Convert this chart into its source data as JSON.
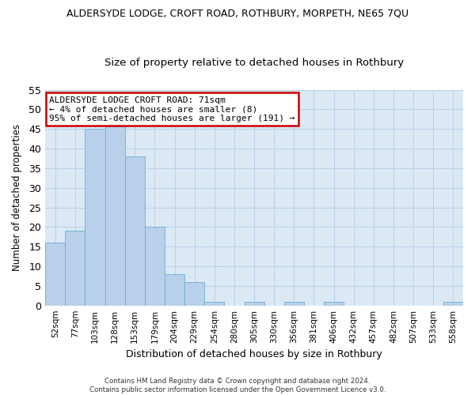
{
  "title": "ALDERSYDE LODGE, CROFT ROAD, ROTHBURY, MORPETH, NE65 7QU",
  "subtitle": "Size of property relative to detached houses in Rothbury",
  "xlabel": "Distribution of detached houses by size in Rothbury",
  "ylabel": "Number of detached properties",
  "bar_values": [
    16,
    19,
    45,
    46,
    38,
    20,
    8,
    6,
    1,
    0,
    1,
    0,
    1,
    0,
    1,
    0,
    0,
    0,
    0,
    0,
    1
  ],
  "bar_labels": [
    "52sqm",
    "77sqm",
    "103sqm",
    "128sqm",
    "153sqm",
    "179sqm",
    "204sqm",
    "229sqm",
    "254sqm",
    "280sqm",
    "305sqm",
    "330sqm",
    "356sqm",
    "381sqm",
    "406sqm",
    "432sqm",
    "457sqm",
    "482sqm",
    "507sqm",
    "533sqm",
    "558sqm"
  ],
  "bar_color": "#b8d0ea",
  "bar_edge_color": "#6aaed6",
  "ylim": [
    0,
    55
  ],
  "yticks": [
    0,
    5,
    10,
    15,
    20,
    25,
    30,
    35,
    40,
    45,
    50,
    55
  ],
  "annotation_text": "ALDERSYDE LODGE CROFT ROAD: 71sqm\n← 4% of detached houses are smaller (8)\n95% of semi-detached houses are larger (191) →",
  "annotation_box_color": "#ffffff",
  "annotation_box_edge": "#cc0000",
  "footer": "Contains HM Land Registry data © Crown copyright and database right 2024.\nContains public sector information licensed under the Open Government Licence v3.0.",
  "bg_color": "#ffffff",
  "plot_bg_color": "#dce9f5",
  "grid_color": "#b8cfe8"
}
